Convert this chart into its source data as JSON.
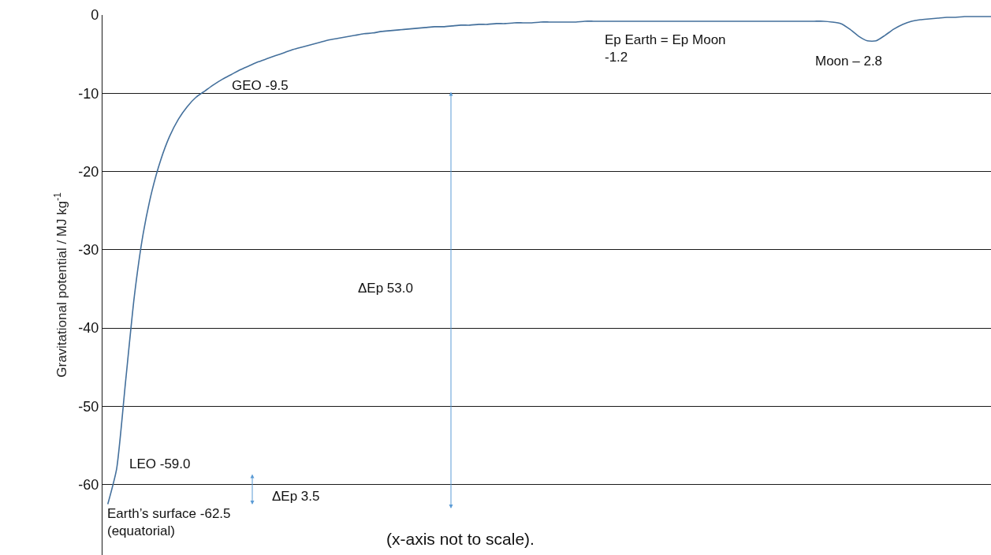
{
  "chart_data": {
    "type": "line",
    "ylabel": "Gravitational potential / MJ kg$^{-1}$",
    "categories": [
      null,
      null,
      null,
      null,
      null,
      null,
      null,
      null,
      null,
      null,
      null,
      null,
      null,
      null,
      null,
      null,
      null,
      null,
      null,
      null,
      null,
      null,
      null,
      null,
      null,
      null,
      null,
      null,
      null,
      null,
      null,
      null,
      null,
      null,
      null,
      null,
      null,
      null,
      null,
      null,
      null,
      null,
      null,
      null,
      null,
      null,
      null,
      null,
      null,
      null,
      null,
      null,
      null,
      null,
      null,
      null,
      null,
      null,
      null,
      null,
      null,
      null,
      null,
      null,
      null,
      null,
      null,
      null,
      null,
      null,
      null,
      null,
      null,
      null,
      null,
      null,
      null,
      null,
      null,
      null,
      null,
      null,
      null,
      null,
      null,
      null,
      null,
      null,
      null,
      null,
      null,
      null,
      null,
      null,
      null,
      null,
      null,
      null,
      null,
      null,
      null
    ],
    "series": [
      {
        "color": "#44709c",
        "values": [
          -62.5,
          -58,
          -47,
          -36,
          -28,
          -22.5,
          -18.5,
          -15.5,
          -13.3,
          -11.7,
          -10.5,
          -9.7,
          -8.9,
          -8.2,
          -7.6,
          -7.0,
          -6.5,
          -6.0,
          -5.6,
          -5.2,
          -4.8,
          -4.4,
          -4.1,
          -3.8,
          -3.5,
          -3.2,
          -3.0,
          -2.8,
          -2.6,
          -2.4,
          -2.3,
          -2.1,
          -2.0,
          -1.9,
          -1.8,
          -1.7,
          -1.6,
          -1.5,
          -1.5,
          -1.4,
          -1.3,
          -1.3,
          -1.2,
          -1.2,
          -1.1,
          -1.1,
          -1.0,
          -1.0,
          -1.0,
          -0.9,
          -0.9,
          -0.9,
          -0.9,
          -0.9,
          -0.8,
          -0.8,
          -0.8,
          -0.8,
          -0.8,
          -0.8,
          -0.8,
          -0.8,
          -0.8,
          -0.8,
          -0.8,
          -0.8,
          -0.8,
          -0.8,
          -0.8,
          -0.8,
          -0.8,
          -0.8,
          -0.8,
          -0.8,
          -0.8,
          -0.8,
          -0.8,
          -0.8,
          -0.8,
          -0.8,
          -0.8,
          -0.8,
          -0.9,
          -1.1,
          -1.8,
          -2.7,
          -3.3,
          -3.3,
          -2.6,
          -1.8,
          -1.2,
          -0.8,
          -0.6,
          -0.5,
          -0.4,
          -0.3,
          -0.3,
          -0.2,
          -0.2,
          -0.2,
          -0.2
        ]
      }
    ],
    "ylim": [
      -69,
      0
    ],
    "yticks": [
      0,
      -10,
      -20,
      -30,
      -40,
      -50,
      -60
    ],
    "grid": "y",
    "tick_labels": "y",
    "marker": "none",
    "line_style": "solid",
    "annotations": [
      "GEO -9.5",
      "Ep Earth = Ep Moon\n-1.2",
      "Moon – 2.8",
      "ΔEp 53.0",
      "LEO -59.0",
      "ΔEp 3.5",
      "Earth’s surface -62.5\n(equatorial)",
      "(x-axis not to scale)."
    ]
  }
}
